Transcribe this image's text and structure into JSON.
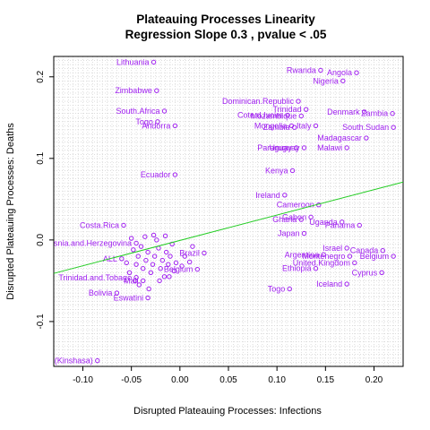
{
  "chart_data": {
    "type": "scatter",
    "title": "Plateauing Processes Linearity",
    "subtitle": "Regression Slope 0.3 , pvalue  < .05",
    "xlabel": "Disrupted Plateauing Processes: Infections",
    "ylabel": "Disrupted Plateauing Processes: Deaths",
    "xlim": [
      -0.13,
      0.23
    ],
    "ylim": [
      -0.155,
      0.225
    ],
    "xticks": [
      "-0.10",
      "-0.05",
      "0.00",
      "0.05",
      "0.10",
      "0.15",
      "0.20"
    ],
    "xtick_values": [
      -0.1,
      -0.05,
      0,
      0.05,
      0.1,
      0.15,
      0.2
    ],
    "yticks": [
      "-0.1",
      "0.0",
      "0.1",
      "0.2"
    ],
    "ytick_values": [
      -0.1,
      0,
      0.1,
      0.2
    ],
    "grid": true,
    "point_color": "#a020f0",
    "regression_line": {
      "color": "#22cc22",
      "x": [
        -0.13,
        0.23
      ],
      "y": [
        -0.041,
        0.071
      ]
    },
    "labeled_points": [
      {
        "label": "Lithuania",
        "x": -0.027,
        "y": 0.218
      },
      {
        "label": "Rwanda",
        "x": 0.145,
        "y": 0.208
      },
      {
        "label": "Angola",
        "x": 0.182,
        "y": 0.205
      },
      {
        "label": "Nigeria",
        "x": 0.168,
        "y": 0.195
      },
      {
        "label": "Zimbabwe",
        "x": -0.024,
        "y": 0.183
      },
      {
        "label": "Dominican.Republic",
        "x": 0.122,
        "y": 0.17
      },
      {
        "label": "Trinidad",
        "x": 0.13,
        "y": 0.16
      },
      {
        "label": "Denmark",
        "x": 0.19,
        "y": 0.157
      },
      {
        "label": "Zambia",
        "x": 0.219,
        "y": 0.155
      },
      {
        "label": "South.Africa",
        "x": -0.016,
        "y": 0.158
      },
      {
        "label": "Cote.d.Ivoire",
        "x": 0.111,
        "y": 0.153
      },
      {
        "label": "Mozambique",
        "x": 0.125,
        "y": 0.152
      },
      {
        "label": "Italy",
        "x": 0.14,
        "y": 0.14
      },
      {
        "label": "Togo",
        "x": -0.023,
        "y": 0.145
      },
      {
        "label": "Andorra",
        "x": -0.005,
        "y": 0.14
      },
      {
        "label": "Mongolia",
        "x": 0.115,
        "y": 0.14
      },
      {
        "label": "Zambia",
        "x": 0.118,
        "y": 0.138
      },
      {
        "label": "South.Sudan",
        "x": 0.22,
        "y": 0.138
      },
      {
        "label": "Madagascar",
        "x": 0.192,
        "y": 0.125
      },
      {
        "label": "Paraguay",
        "x": 0.12,
        "y": 0.113
      },
      {
        "label": "Uruguay",
        "x": 0.128,
        "y": 0.113
      },
      {
        "label": "Malawi",
        "x": 0.172,
        "y": 0.113
      },
      {
        "label": "Kenya",
        "x": 0.116,
        "y": 0.085
      },
      {
        "label": "Ecuador",
        "x": -0.005,
        "y": 0.08
      },
      {
        "label": "Ireland",
        "x": 0.108,
        "y": 0.055
      },
      {
        "label": "Cameroon",
        "x": 0.143,
        "y": 0.043
      },
      {
        "label": "Gabon",
        "x": 0.135,
        "y": 0.028
      },
      {
        "label": "Ghana",
        "x": 0.125,
        "y": 0.025
      },
      {
        "label": "Uganda",
        "x": 0.167,
        "y": 0.022
      },
      {
        "label": "Panama",
        "x": 0.185,
        "y": 0.018
      },
      {
        "label": "Costa.Rica",
        "x": -0.058,
        "y": 0.018
      },
      {
        "label": "Japan",
        "x": 0.128,
        "y": 0.008
      },
      {
        "label": "Bosnia.and.Herzegovina",
        "x": -0.045,
        "y": -0.004
      },
      {
        "label": "Israel",
        "x": 0.172,
        "y": -0.01
      },
      {
        "label": "Canada",
        "x": 0.209,
        "y": -0.013
      },
      {
        "label": "Argentina",
        "x": 0.148,
        "y": -0.018
      },
      {
        "label": "Montenegro",
        "x": 0.175,
        "y": -0.02
      },
      {
        "label": "Belgium",
        "x": 0.22,
        "y": -0.02
      },
      {
        "label": "Brazil",
        "x": 0.025,
        "y": -0.016
      },
      {
        "label": "United.Kingdom",
        "x": 0.18,
        "y": -0.028
      },
      {
        "label": "Ethiopia",
        "x": 0.14,
        "y": -0.035
      },
      {
        "label": "Cyprus",
        "x": 0.208,
        "y": -0.04
      },
      {
        "label": "Belgium",
        "x": 0.018,
        "y": -0.036
      },
      {
        "label": "Trinidad.and.Tobago",
        "x": -0.045,
        "y": -0.046
      },
      {
        "label": "Iceland",
        "x": 0.172,
        "y": -0.054
      },
      {
        "label": "Togo",
        "x": 0.113,
        "y": -0.06
      },
      {
        "label": "Mali",
        "x": -0.038,
        "y": -0.05
      },
      {
        "label": "Bolivia",
        "x": -0.065,
        "y": -0.065
      },
      {
        "label": "Eswatini",
        "x": -0.033,
        "y": -0.071
      },
      {
        "label": "(Kinshasa)",
        "x": -0.085,
        "y": -0.148
      },
      {
        "label": "ALL",
        "x": -0.06,
        "y": -0.023
      }
    ],
    "cluster_points": [
      {
        "x": -0.055,
        "y": -0.028
      },
      {
        "x": -0.052,
        "y": -0.04
      },
      {
        "x": -0.048,
        "y": -0.012
      },
      {
        "x": -0.045,
        "y": -0.03
      },
      {
        "x": -0.043,
        "y": -0.02
      },
      {
        "x": -0.04,
        "y": -0.008
      },
      {
        "x": -0.038,
        "y": -0.035
      },
      {
        "x": -0.035,
        "y": -0.025
      },
      {
        "x": -0.033,
        "y": -0.015
      },
      {
        "x": -0.03,
        "y": -0.04
      },
      {
        "x": -0.028,
        "y": -0.03
      },
      {
        "x": -0.026,
        "y": -0.02
      },
      {
        "x": -0.024,
        "y": 0.0
      },
      {
        "x": -0.022,
        "y": -0.01
      },
      {
        "x": -0.02,
        "y": -0.035
      },
      {
        "x": -0.018,
        "y": -0.025
      },
      {
        "x": -0.016,
        "y": -0.045
      },
      {
        "x": -0.014,
        "y": -0.015
      },
      {
        "x": -0.012,
        "y": -0.03
      },
      {
        "x": -0.01,
        "y": -0.02
      },
      {
        "x": -0.008,
        "y": -0.005
      },
      {
        "x": -0.006,
        "y": -0.038
      },
      {
        "x": -0.004,
        "y": -0.028
      },
      {
        "x": -0.05,
        "y": 0.002
      },
      {
        "x": -0.046,
        "y": -0.05
      },
      {
        "x": -0.042,
        "y": -0.055
      },
      {
        "x": -0.036,
        "y": 0.004
      },
      {
        "x": -0.032,
        "y": -0.06
      },
      {
        "x": -0.027,
        "y": 0.006
      },
      {
        "x": -0.021,
        "y": -0.05
      },
      {
        "x": -0.015,
        "y": 0.005
      },
      {
        "x": -0.011,
        "y": -0.045
      },
      {
        "x": 0.002,
        "y": -0.032
      },
      {
        "x": 0.005,
        "y": -0.02
      },
      {
        "x": 0.01,
        "y": -0.027
      },
      {
        "x": 0.013,
        "y": -0.008
      }
    ]
  }
}
